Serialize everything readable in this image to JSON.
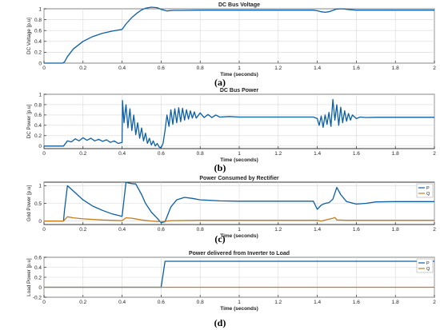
{
  "colors": {
    "series1": "#0b5fa5",
    "series2": "#c77a1c",
    "grid": "#d8d8d8",
    "axis": "#000000"
  },
  "chart_data": [
    {
      "type": "line",
      "caption": "(a)",
      "title": "DC Bus Voltage",
      "xlabel": "Time (seconds)",
      "ylabel": "DC Voltage [p.u]",
      "xlim": [
        0,
        2
      ],
      "ylim": [
        0,
        1
      ],
      "xticks": [
        "0",
        "0.2",
        "0.4",
        "0.6",
        "0.8",
        "1",
        "1.2",
        "1.4",
        "1.6",
        "1.8",
        "2"
      ],
      "yticks": [
        "0",
        "0.2",
        "0.4",
        "0.6",
        "0.8",
        "1"
      ],
      "grid": true,
      "series": [
        {
          "x": [
            0,
            0.095,
            0.105,
            0.12,
            0.15,
            0.2,
            0.25,
            0.3,
            0.35,
            0.4,
            0.42,
            0.45,
            0.48,
            0.5,
            0.52,
            0.55,
            0.58,
            0.6,
            0.63,
            0.66,
            0.7,
            0.8,
            1.0,
            1.2,
            1.38,
            1.4,
            1.42,
            1.44,
            1.46,
            1.48,
            1.5,
            1.53,
            1.56,
            1.6,
            1.8,
            2.0
          ],
          "y": [
            0,
            0,
            0.02,
            0.12,
            0.26,
            0.4,
            0.49,
            0.55,
            0.59,
            0.62,
            0.72,
            0.84,
            0.93,
            0.98,
            1.01,
            1.03,
            1.02,
            0.99,
            0.96,
            0.97,
            0.97,
            0.975,
            0.975,
            0.975,
            0.975,
            0.965,
            0.945,
            0.935,
            0.945,
            0.97,
            0.995,
            1.0,
            0.985,
            0.975,
            0.975,
            0.975
          ]
        }
      ]
    },
    {
      "type": "line",
      "caption": "(b)",
      "title": "DC Bus Power",
      "xlabel": "Time (seconds)",
      "ylabel": "DC Power [p.u]",
      "xlim": [
        0,
        2
      ],
      "ylim": [
        -0.05,
        1
      ],
      "xticks": [
        "0",
        "0.2",
        "0.4",
        "0.6",
        "0.8",
        "1",
        "1.2",
        "1.4",
        "1.6",
        "1.8",
        "2"
      ],
      "yticks": [
        "0",
        "0.2",
        "0.4",
        "0.6",
        "0.8",
        "1"
      ],
      "grid": true,
      "series": [
        {
          "x": [
            0,
            0.1,
            0.12,
            0.14,
            0.16,
            0.18,
            0.2,
            0.22,
            0.24,
            0.26,
            0.28,
            0.3,
            0.32,
            0.34,
            0.36,
            0.38,
            0.4,
            0.402,
            0.41,
            0.42,
            0.43,
            0.44,
            0.45,
            0.46,
            0.47,
            0.48,
            0.49,
            0.5,
            0.51,
            0.52,
            0.53,
            0.54,
            0.55,
            0.56,
            0.57,
            0.58,
            0.59,
            0.6,
            0.61,
            0.62,
            0.63,
            0.64,
            0.65,
            0.66,
            0.67,
            0.68,
            0.69,
            0.7,
            0.71,
            0.72,
            0.73,
            0.74,
            0.75,
            0.76,
            0.77,
            0.78,
            0.8,
            0.82,
            0.84,
            0.86,
            0.88,
            0.9,
            0.95,
            1.0,
            1.1,
            1.2,
            1.3,
            1.38,
            1.4,
            1.41,
            1.42,
            1.43,
            1.44,
            1.45,
            1.46,
            1.47,
            1.48,
            1.49,
            1.5,
            1.51,
            1.52,
            1.53,
            1.54,
            1.55,
            1.56,
            1.57,
            1.58,
            1.6,
            1.62,
            1.65,
            1.7,
            1.8,
            2.0
          ],
          "y": [
            0,
            0,
            0.1,
            0.08,
            0.14,
            0.1,
            0.16,
            0.11,
            0.15,
            0.1,
            0.13,
            0.09,
            0.12,
            0.07,
            0.1,
            0.05,
            0.07,
            0.88,
            0.45,
            0.8,
            0.35,
            0.72,
            0.3,
            0.6,
            0.22,
            0.45,
            0.15,
            0.35,
            0.1,
            0.25,
            0.05,
            0.15,
            0.02,
            0.1,
            0.0,
            0.05,
            -0.02,
            -0.03,
            0.05,
            0.3,
            0.6,
            0.38,
            0.7,
            0.42,
            0.72,
            0.45,
            0.74,
            0.47,
            0.73,
            0.5,
            0.7,
            0.52,
            0.68,
            0.54,
            0.66,
            0.54,
            0.64,
            0.55,
            0.61,
            0.55,
            0.6,
            0.56,
            0.57,
            0.56,
            0.56,
            0.56,
            0.56,
            0.56,
            0.53,
            0.4,
            0.58,
            0.36,
            0.6,
            0.42,
            0.65,
            0.38,
            0.9,
            0.5,
            0.8,
            0.4,
            0.75,
            0.45,
            0.68,
            0.48,
            0.63,
            0.5,
            0.6,
            0.53,
            0.56,
            0.55,
            0.555,
            0.555,
            0.555
          ]
        }
      ]
    },
    {
      "type": "line",
      "caption": "(c)",
      "title": "Power Consumed by Rectifier",
      "xlabel": "Time (seconds)",
      "ylabel": "Grid Power [p.u]",
      "xlim": [
        0,
        2
      ],
      "ylim": [
        -0.1,
        1.1
      ],
      "xticks": [
        "0",
        "0.2",
        "0.4",
        "0.6",
        "0.8",
        "1",
        "1.2",
        "1.4",
        "1.6",
        "1.8",
        "2"
      ],
      "yticks": [
        "0",
        "0.5",
        "1"
      ],
      "grid": true,
      "legend": "top-right",
      "series": [
        {
          "name": "P",
          "x": [
            0,
            0.1,
            0.105,
            0.12,
            0.15,
            0.2,
            0.25,
            0.3,
            0.35,
            0.4,
            0.42,
            0.43,
            0.45,
            0.47,
            0.5,
            0.52,
            0.55,
            0.58,
            0.6,
            0.62,
            0.65,
            0.68,
            0.72,
            0.76,
            0.8,
            0.9,
            1.0,
            1.1,
            1.2,
            1.3,
            1.38,
            1.4,
            1.42,
            1.44,
            1.46,
            1.48,
            1.5,
            1.52,
            1.55,
            1.6,
            1.65,
            1.7,
            1.8,
            2.0
          ],
          "y": [
            0,
            0,
            0.3,
            1.0,
            0.85,
            0.6,
            0.42,
            0.3,
            0.2,
            0.13,
            1.1,
            1.08,
            1.06,
            1.05,
            0.75,
            0.5,
            0.25,
            0.08,
            -0.05,
            -0.02,
            0.4,
            0.6,
            0.67,
            0.64,
            0.6,
            0.57,
            0.56,
            0.56,
            0.56,
            0.56,
            0.56,
            0.33,
            0.45,
            0.5,
            0.52,
            0.62,
            0.95,
            0.75,
            0.55,
            0.48,
            0.5,
            0.54,
            0.55,
            0.55
          ]
        },
        {
          "name": "Q",
          "x": [
            0,
            0.1,
            0.12,
            0.15,
            0.2,
            0.3,
            0.4,
            0.42,
            0.45,
            0.5,
            0.55,
            0.6,
            0.65,
            0.8,
            1.0,
            1.4,
            1.42,
            1.48,
            1.49,
            1.5,
            1.55,
            1.6,
            2.0
          ],
          "y": [
            0,
            0,
            0.12,
            0.09,
            0.06,
            0.03,
            0.01,
            0.09,
            0.08,
            0.03,
            0.0,
            -0.02,
            0.01,
            0.02,
            0.02,
            0.02,
            0.0,
            0.08,
            0.1,
            0.03,
            0.02,
            0.02,
            0.02
          ]
        }
      ]
    },
    {
      "type": "line",
      "caption": "(d)",
      "title": "Power delivered from Inverter to Load",
      "xlabel": "Time (seconds)",
      "ylabel": "Load Power [p.u]",
      "xlim": [
        0,
        2
      ],
      "ylim": [
        -0.2,
        0.6
      ],
      "xticks": [
        "0",
        "0.2",
        "0.4",
        "0.6",
        "0.8",
        "1",
        "1.2",
        "1.4",
        "1.6",
        "1.8",
        "2"
      ],
      "yticks": [
        "-0.2",
        "0",
        "0.2",
        "0.4",
        "0.6"
      ],
      "grid": true,
      "legend": "top-right",
      "series": [
        {
          "name": "P",
          "x": [
            0,
            0.6,
            0.62,
            2.0
          ],
          "y": [
            0,
            0,
            0.52,
            0.52
          ]
        },
        {
          "name": "Q",
          "x": [
            0,
            2.0
          ],
          "y": [
            0,
            0
          ]
        }
      ]
    }
  ]
}
